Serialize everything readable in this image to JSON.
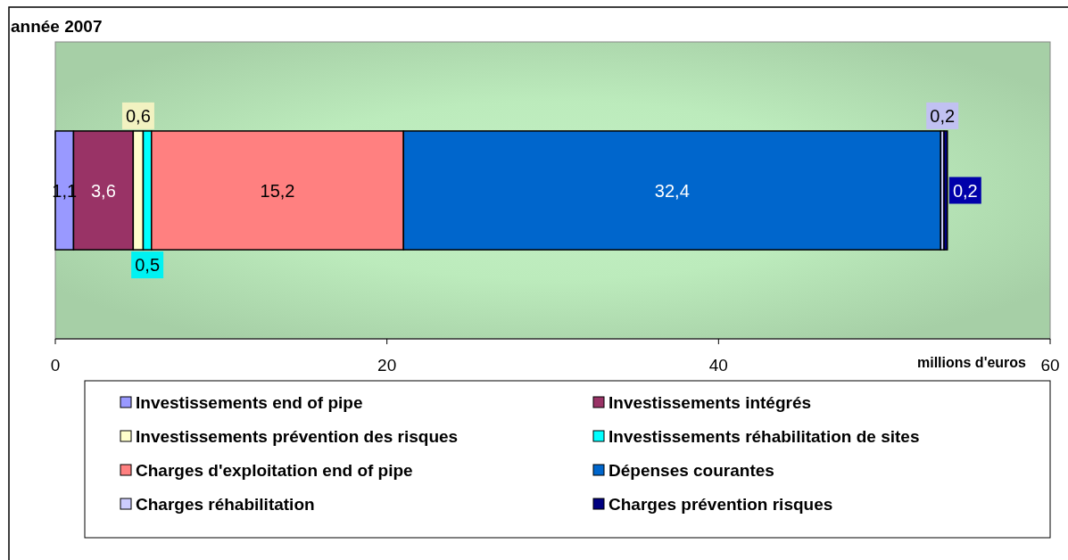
{
  "chart_data": {
    "type": "bar",
    "orientation": "horizontal",
    "stacked": true,
    "title": "année 2007",
    "xlabel": "millions d'euros",
    "categories": [
      null
    ],
    "xlim": [
      0,
      60
    ],
    "xticks": [
      0,
      20,
      40,
      60
    ],
    "legend": "bottom",
    "series": [
      {
        "name": "Investissements end of pipe",
        "color": "#9999ff",
        "values": [
          1.1
        ],
        "value_labels": [
          "1,1"
        ]
      },
      {
        "name": "Investissements intégrés",
        "color": "#993366",
        "values": [
          3.6
        ],
        "value_labels": [
          "3,6"
        ]
      },
      {
        "name": "Investissements prévention des risques",
        "color": "#ffffcc",
        "values": [
          0.6
        ],
        "value_labels": [
          "0,6"
        ]
      },
      {
        "name": "Investissements réhabilitation de sites",
        "color": "#00ffff",
        "values": [
          0.5
        ],
        "value_labels": [
          "0,5"
        ]
      },
      {
        "name": "Charges d'exploitation end of pipe",
        "color": "#ff8080",
        "values": [
          15.2
        ],
        "value_labels": [
          "15,2"
        ]
      },
      {
        "name": "Dépenses courantes",
        "color": "#0066cc",
        "values": [
          32.4
        ],
        "value_labels": [
          "32,4"
        ]
      },
      {
        "name": "Charges réhabilitation",
        "color": "#ccccff",
        "values": [
          0.2
        ],
        "value_labels": [
          "0,2"
        ]
      },
      {
        "name": "Charges prévention risques",
        "color": "#000080",
        "values": [
          0.2
        ],
        "value_labels": [
          "0,2"
        ]
      }
    ]
  }
}
